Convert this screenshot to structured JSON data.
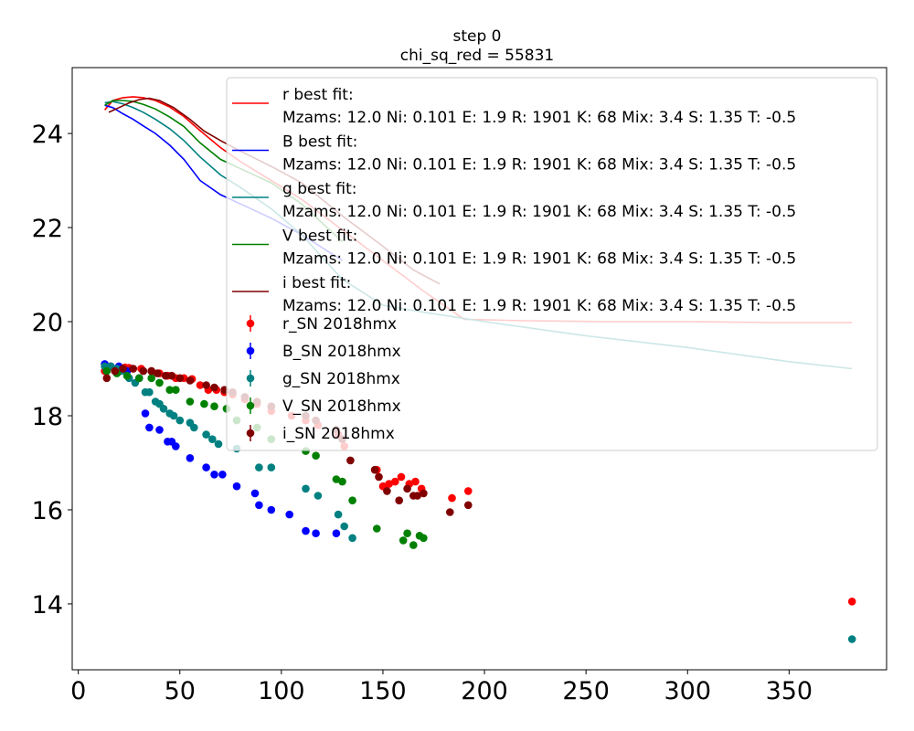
{
  "chart_data": {
    "type": "scatter",
    "title": "step 0",
    "subtitle": "chi_sq_red = 55831",
    "xlabel": "",
    "ylabel": "",
    "xlim": [
      -3,
      398
    ],
    "ylim": [
      12.6,
      25.4
    ],
    "xticks": [
      0,
      50,
      100,
      150,
      200,
      250,
      300,
      350
    ],
    "yticks": [
      14,
      16,
      18,
      20,
      22,
      24
    ],
    "grid": false,
    "legend_position": "top-right",
    "line_series": [
      {
        "name": "r best fit:",
        "params": "Mzams: 12.0 Ni: 0.101 E: 1.9 R: 1901 K: 68 Mix: 3.4 S: 1.35 T: -0.5",
        "color": "#ff0000",
        "x": [
          13,
          17,
          22,
          27,
          32,
          38,
          45,
          52,
          60,
          70,
          80,
          95,
          110,
          130,
          150,
          170,
          190,
          220,
          260,
          300,
          340,
          381
        ],
        "y": [
          24.5,
          24.7,
          24.76,
          24.78,
          24.76,
          24.7,
          24.56,
          24.36,
          24.06,
          23.7,
          23.4,
          23.0,
          22.6,
          21.95,
          21.3,
          20.65,
          20.05,
          20.02,
          20.0,
          20.0,
          19.98,
          19.98
        ]
      },
      {
        "name": "B best fit:",
        "params": "Mzams: 12.0 Ni: 0.101 E: 1.9 R: 1901 K: 68 Mix: 3.4 S: 1.35 T: -0.5",
        "color": "#0000ff",
        "x": [
          13,
          17,
          22,
          27,
          32,
          38,
          45,
          52,
          60,
          70,
          80,
          95,
          110,
          130
        ],
        "y": [
          24.6,
          24.55,
          24.42,
          24.3,
          24.16,
          24.0,
          23.75,
          23.45,
          23.0,
          22.7,
          22.5,
          22.2,
          21.85,
          21.3
        ]
      },
      {
        "name": "g best fit:",
        "params": "Mzams: 12.0 Ni: 0.101 E: 1.9 R: 1901 K: 68 Mix: 3.4 S: 1.35 T: -0.5",
        "color": "#008080",
        "x": [
          13,
          17,
          22,
          27,
          32,
          38,
          45,
          52,
          60,
          70,
          80,
          95,
          110,
          130,
          150,
          170,
          200,
          250,
          300,
          350,
          381
        ],
        "y": [
          24.65,
          24.68,
          24.63,
          24.55,
          24.45,
          24.3,
          24.1,
          23.85,
          23.5,
          23.12,
          22.85,
          22.4,
          21.85,
          20.9,
          20.35,
          20.2,
          20.0,
          19.7,
          19.45,
          19.15,
          19.0
        ]
      },
      {
        "name": "V best fit:",
        "params": "Mzams: 12.0 Ni: 0.101 E: 1.9 R: 1901 K: 68 Mix: 3.4 S: 1.35 T: -0.5",
        "color": "#008000",
        "x": [
          13,
          17,
          22,
          27,
          32,
          38,
          45,
          52,
          60,
          70,
          80,
          95,
          110,
          130
        ],
        "y": [
          24.6,
          24.7,
          24.7,
          24.68,
          24.62,
          24.52,
          24.35,
          24.15,
          23.8,
          23.45,
          23.25,
          22.95,
          22.5,
          21.7
        ]
      },
      {
        "name": "i best fit:",
        "params": "Mzams: 12.0 Ni: 0.101 E: 1.9 R: 1901 K: 68 Mix: 3.4 S: 1.35 T: -0.5",
        "color": "#800000",
        "x": [
          15,
          20,
          25,
          30,
          35,
          40,
          47,
          55,
          62,
          70,
          80,
          95,
          110,
          130,
          150,
          165,
          178
        ],
        "y": [
          24.45,
          24.55,
          24.65,
          24.72,
          24.75,
          24.7,
          24.55,
          24.3,
          24.05,
          23.85,
          23.62,
          23.3,
          22.95,
          22.25,
          21.6,
          21.1,
          20.8
        ]
      }
    ],
    "scatter_series": [
      {
        "name": "r_SN 2018hmx",
        "color": "#ff0000",
        "x": [
          13,
          16,
          20,
          23,
          25,
          27,
          31,
          36,
          40,
          44,
          48,
          52,
          56,
          60,
          64,
          68,
          72,
          76,
          82,
          88,
          95,
          105,
          112,
          118,
          128,
          131,
          147,
          150,
          153,
          156,
          159,
          163,
          166,
          169,
          184,
          192,
          381
        ],
        "y": [
          18.95,
          19.05,
          19.02,
          19.03,
          19.02,
          19.0,
          19.0,
          18.95,
          18.9,
          18.85,
          18.8,
          18.8,
          18.78,
          18.65,
          18.55,
          18.55,
          18.5,
          18.45,
          18.35,
          18.25,
          18.1,
          18.0,
          17.9,
          17.8,
          17.6,
          17.35,
          16.85,
          16.5,
          16.55,
          16.6,
          16.7,
          16.55,
          16.6,
          16.45,
          16.25,
          16.4,
          14.05
        ]
      },
      {
        "name": "B_SN 2018hmx",
        "color": "#0000ff",
        "x": [
          13,
          16,
          20,
          24,
          30,
          33,
          35,
          40,
          44,
          46,
          48,
          55,
          63,
          67,
          71,
          78,
          87,
          89,
          95,
          104,
          112,
          117,
          127
        ],
        "y": [
          19.1,
          19.05,
          19.05,
          18.95,
          18.8,
          18.05,
          17.75,
          17.7,
          17.45,
          17.45,
          17.35,
          17.1,
          16.9,
          16.75,
          16.75,
          16.5,
          16.35,
          16.1,
          16.0,
          15.9,
          15.55,
          15.5,
          15.5
        ]
      },
      {
        "name": "g_SN 2018hmx",
        "color": "#008080",
        "x": [
          13,
          16,
          19,
          21,
          25,
          28,
          33,
          35,
          38,
          40,
          42,
          45,
          47,
          50,
          55,
          57,
          63,
          66,
          69,
          78,
          89,
          95,
          112,
          118,
          128,
          131,
          135,
          381
        ],
        "y": [
          19.05,
          19.05,
          19.0,
          18.95,
          18.8,
          18.7,
          18.5,
          18.5,
          18.3,
          18.25,
          18.15,
          18.05,
          18.0,
          17.9,
          17.85,
          17.75,
          17.6,
          17.5,
          17.4,
          17.3,
          16.9,
          16.9,
          16.45,
          16.3,
          15.9,
          15.65,
          15.4,
          13.25
        ]
      },
      {
        "name": "V_SN 2018hmx",
        "color": "#008000",
        "x": [
          14,
          19,
          24,
          30,
          36,
          40,
          45,
          48,
          55,
          62,
          67,
          73,
          78,
          88,
          95,
          112,
          117,
          127,
          130,
          135,
          147,
          160,
          162,
          165,
          168,
          170
        ],
        "y": [
          18.95,
          18.9,
          18.85,
          18.8,
          18.8,
          18.7,
          18.55,
          18.55,
          18.3,
          18.25,
          18.2,
          18.15,
          17.9,
          17.75,
          17.5,
          17.25,
          17.15,
          16.65,
          16.6,
          16.2,
          15.6,
          15.35,
          15.5,
          15.25,
          15.45,
          15.4
        ]
      },
      {
        "name": "i_SN 2018hmx",
        "color": "#800000",
        "x": [
          14,
          18,
          22,
          27,
          32,
          36,
          39,
          43,
          46,
          50,
          55,
          63,
          67,
          72,
          76,
          82,
          88,
          95,
          112,
          117,
          127,
          130,
          134,
          146,
          148,
          152,
          158,
          162,
          165,
          167,
          170,
          183,
          192
        ],
        "y": [
          18.8,
          18.95,
          19.0,
          19.0,
          18.95,
          18.95,
          18.9,
          18.85,
          18.85,
          18.8,
          18.75,
          18.65,
          18.6,
          18.55,
          18.5,
          18.4,
          18.3,
          18.2,
          18.0,
          17.9,
          17.7,
          17.5,
          17.05,
          16.85,
          16.7,
          16.4,
          16.2,
          16.45,
          16.3,
          16.3,
          16.35,
          15.95,
          16.1
        ]
      }
    ]
  }
}
